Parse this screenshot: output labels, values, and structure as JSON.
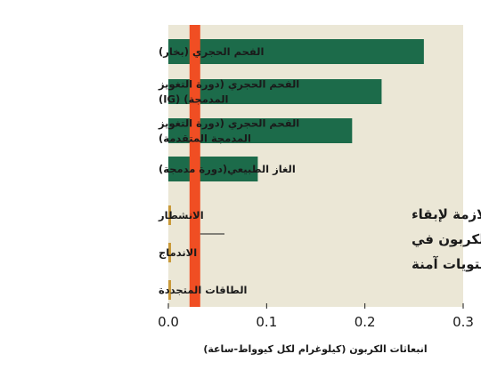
{
  "chart_data": {
    "type": "bar",
    "orientation": "horizontal",
    "categories": [
      [
        "الفحم الحجري (بخار)"
      ],
      [
        "الفحم الحجري (دورة التغويز",
        "المدمجة) (IG)"
      ],
      [
        "الفحم الحجري (دورة التغويز",
        "المدمجة المتقدمة)"
      ],
      [
        "الغاز الطبيعي(دورة مدمجة)"
      ],
      [
        "الانشطار"
      ],
      [
        "الاندماج"
      ],
      [
        "الطاقات المتجددة"
      ]
    ],
    "values": [
      0.26,
      0.217,
      0.187,
      0.091,
      0.002,
      0.002,
      0.002
    ],
    "xlim": [
      0,
      0.3
    ],
    "xticks": [
      "0.0",
      "0.1",
      "0.2",
      "0.3"
    ],
    "xtick_values": [
      0,
      0.1,
      0.2,
      0.3
    ],
    "xlabel": "انبعاثات الكربون (كيلوغرام لكل كيوواط-ساعة)",
    "threshold": {
      "value": 0.027,
      "lines": [
        "حدود الانبعاث اللازمة لإبقاء",
        "ثنائي أكسيد الكربون في",
        "الجو عند مستويات آمنة"
      ]
    },
    "colors": {
      "bar": "#1c6b4a",
      "small_bar": "#c99a3a",
      "threshold": "#f04e23",
      "plot_bg": "#ebe7d6"
    }
  }
}
